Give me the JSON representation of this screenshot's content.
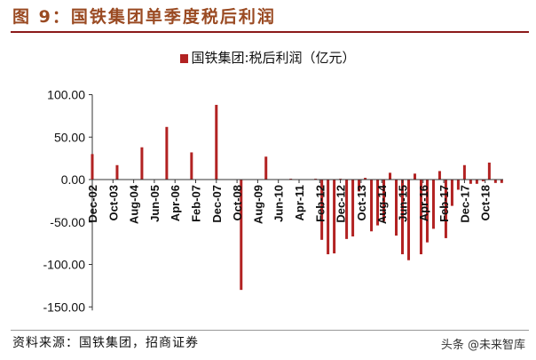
{
  "title": "图 9：国铁集团单季度税后利润",
  "source": "资料来源：国铁集团，招商证券",
  "watermark": "头条 @未来智库",
  "chart_data": {
    "type": "bar",
    "title": "图 9：国铁集团单季度税后利润",
    "legend": {
      "entries": [
        "国铁集团:税后利润（亿元）"
      ],
      "placement": "top-center"
    },
    "series": [
      {
        "name": "国铁集团:税后利润（亿元）",
        "color": "#b22222",
        "points": [
          [
            "2002-12",
            30
          ],
          [
            "2003-12",
            17
          ],
          [
            "2004-12",
            38
          ],
          [
            "2005-12",
            62
          ],
          [
            "2006-12",
            32
          ],
          [
            "2007-12",
            88
          ],
          [
            "2008-12",
            -130
          ],
          [
            "2009-12",
            27
          ],
          [
            "2010-12",
            1
          ],
          [
            "2011-12",
            1
          ],
          [
            "2012-03",
            -71
          ],
          [
            "2012-06",
            -88
          ],
          [
            "2012-09",
            -87
          ],
          [
            "2012-12",
            1
          ],
          [
            "2013-03",
            -70
          ],
          [
            "2013-06",
            -67
          ],
          [
            "2013-09",
            -14
          ],
          [
            "2013-12",
            2
          ],
          [
            "2014-03",
            -61
          ],
          [
            "2014-06",
            -54
          ],
          [
            "2014-09",
            -49
          ],
          [
            "2014-12",
            8
          ],
          [
            "2015-03",
            -66
          ],
          [
            "2015-06",
            -88
          ],
          [
            "2015-09",
            -95
          ],
          [
            "2015-12",
            7
          ],
          [
            "2016-03",
            -88
          ],
          [
            "2016-06",
            -74
          ],
          [
            "2016-09",
            -58
          ],
          [
            "2016-12",
            10
          ],
          [
            "2017-03",
            -69
          ],
          [
            "2017-06",
            -31
          ],
          [
            "2017-09",
            -12
          ],
          [
            "2017-12",
            17
          ],
          [
            "2018-03",
            -5
          ],
          [
            "2018-06",
            -5
          ],
          [
            "2018-09",
            -2
          ],
          [
            "2018-12",
            20
          ],
          [
            "2019-03",
            -4
          ],
          [
            "2019-06",
            -4
          ]
        ]
      }
    ],
    "x_ticks": [
      [
        "2002-12",
        "Dec-02"
      ],
      [
        "2003-10",
        "Oct-03"
      ],
      [
        "2004-08",
        "Aug-04"
      ],
      [
        "2005-06",
        "Jun-05"
      ],
      [
        "2006-04",
        "Apr-06"
      ],
      [
        "2007-02",
        "Feb-07"
      ],
      [
        "2007-12",
        "Dec-07"
      ],
      [
        "2008-10",
        "Oct-08"
      ],
      [
        "2009-08",
        "Aug-09"
      ],
      [
        "2010-06",
        "Jun-10"
      ],
      [
        "2011-04",
        "Apr-11"
      ],
      [
        "2012-02",
        "Feb-12"
      ],
      [
        "2012-12",
        "Dec-12"
      ],
      [
        "2013-10",
        "Oct-13"
      ],
      [
        "2014-08",
        "Aug-14"
      ],
      [
        "2015-06",
        "Jun-15"
      ],
      [
        "2016-04",
        "Apr-16"
      ],
      [
        "2017-02",
        "Feb-17"
      ],
      [
        "2017-12",
        "Dec-17"
      ],
      [
        "2018-10",
        "Oct-18"
      ]
    ],
    "y_ticks": [
      "100.00",
      "50.00",
      "0.00",
      "-50.00",
      "-100.00",
      "-150.00"
    ],
    "ylim": [
      -150,
      100
    ],
    "grid": false
  }
}
